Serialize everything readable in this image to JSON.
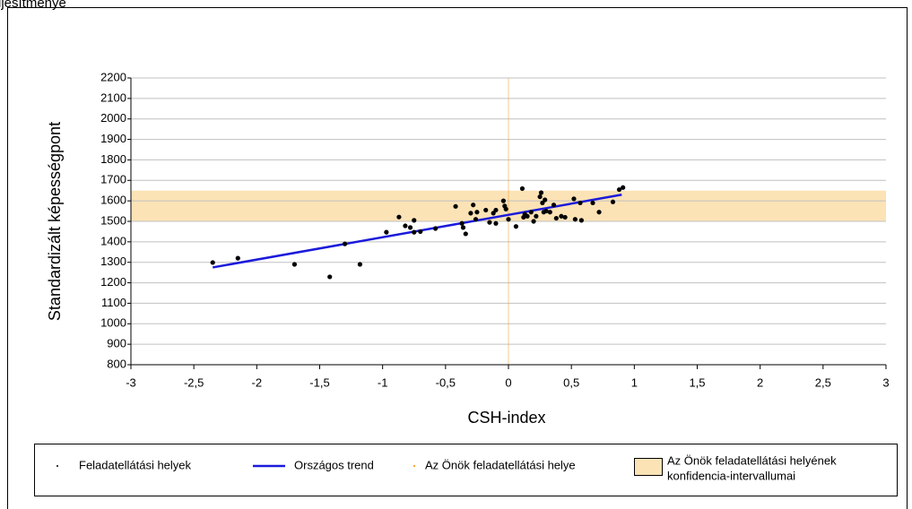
{
  "header": "ljesítménye",
  "chart_data": {
    "type": "scatter",
    "xlabel": "CSH-index",
    "ylabel": "Standardizált képességpont",
    "xlim": [
      -3,
      3
    ],
    "ylim": [
      800,
      2200
    ],
    "xticks": [
      -3,
      {
        "value": -2.5,
        "label": "-2,5"
      },
      -2,
      {
        "value": -1.5,
        "label": "-1,5"
      },
      -1,
      {
        "value": -0.5,
        "label": "-0,5"
      },
      0,
      {
        "value": 0.5,
        "label": "0,5"
      },
      1,
      {
        "value": 1.5,
        "label": "1,5"
      },
      2,
      {
        "value": 2.5,
        "label": "2,5"
      },
      3
    ],
    "yticks": [
      800,
      900,
      1000,
      1100,
      1200,
      1300,
      1400,
      1500,
      1600,
      1700,
      1800,
      1900,
      2000,
      2100,
      2200
    ],
    "grid": true,
    "series": [
      {
        "name": "Feladatellátási helyek",
        "color": "#000000",
        "x": [
          -2.35,
          -2.15,
          -1.7,
          -1.3,
          -1.42,
          -1.18,
          -0.97,
          -0.87,
          -0.82,
          -0.78,
          -0.75,
          -0.75,
          -0.7,
          -0.58,
          -0.42,
          -0.37,
          -0.36,
          -0.34,
          -0.3,
          -0.28,
          -0.26,
          -0.25,
          -0.18,
          -0.15,
          -0.12,
          -0.1,
          -0.1,
          -0.04,
          -0.03,
          -0.02,
          0.0,
          0.06,
          0.11,
          0.12,
          0.13,
          0.15,
          0.18,
          0.2,
          0.22,
          0.25,
          0.26,
          0.27,
          0.28,
          0.29,
          0.3,
          0.33,
          0.36,
          0.38,
          0.42,
          0.45,
          0.52,
          0.53,
          0.57,
          0.58,
          0.67,
          0.72,
          0.83,
          0.88,
          0.91
        ],
        "values": [
          1299,
          1320,
          1290,
          1390,
          1229,
          1290,
          1447,
          1521,
          1478,
          1470,
          1505,
          1447,
          1450,
          1465,
          1573,
          1490,
          1470,
          1439,
          1540,
          1580,
          1510,
          1545,
          1555,
          1495,
          1540,
          1555,
          1490,
          1600,
          1575,
          1560,
          1510,
          1475,
          1660,
          1520,
          1535,
          1525,
          1545,
          1500,
          1525,
          1620,
          1640,
          1590,
          1545,
          1605,
          1550,
          1545,
          1580,
          1515,
          1525,
          1520,
          1610,
          1510,
          1590,
          1505,
          1590,
          1545,
          1595,
          1655,
          1665
        ]
      }
    ],
    "trend": {
      "name": "Országos trend",
      "color": "#1a1adb",
      "x": [
        -2.35,
        0.9
      ],
      "values": [
        1275,
        1630
      ]
    },
    "own_site": {
      "name": "Az Önök feladatellátási helye",
      "color": "#f5a640",
      "x": 0
    },
    "band": {
      "name": [
        "Az Önök feladatellátási helyének",
        "konfidencia-intervallumai"
      ],
      "color": "#fce3b6",
      "range": [
        1500,
        1650
      ]
    }
  }
}
